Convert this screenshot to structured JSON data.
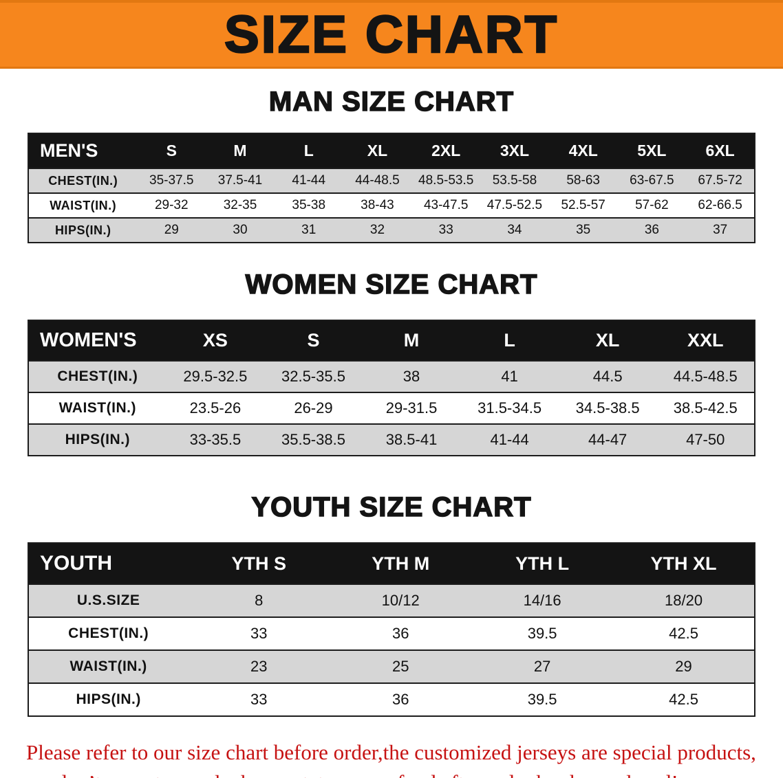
{
  "banner": {
    "title": "SIZE CHART"
  },
  "colors": {
    "banner_bg": "#F6861D",
    "table_header_bg": "#141414",
    "row_gray": "#D6D6D6",
    "footer_red": "#C61212"
  },
  "men": {
    "heading": "MAN SIZE CHART",
    "table": {
      "header": [
        "MEN'S",
        "S",
        "M",
        "L",
        "XL",
        "2XL",
        "3XL",
        "4XL",
        "5XL",
        "6XL"
      ],
      "rows": [
        {
          "label": "CHEST(IN.)",
          "values": [
            "35-37.5",
            "37.5-41",
            "41-44",
            "44-48.5",
            "48.5-53.5",
            "53.5-58",
            "58-63",
            "63-67.5",
            "67.5-72"
          ]
        },
        {
          "label": "WAIST(IN.)",
          "values": [
            "29-32",
            "32-35",
            "35-38",
            "38-43",
            "43-47.5",
            "47.5-52.5",
            "52.5-57",
            "57-62",
            "62-66.5"
          ]
        },
        {
          "label": "HIPS(IN.)",
          "values": [
            "29",
            "30",
            "31",
            "32",
            "33",
            "34",
            "35",
            "36",
            "37"
          ]
        }
      ]
    }
  },
  "women": {
    "heading": "WOMEN SIZE CHART",
    "table": {
      "header": [
        "WOMEN'S",
        "XS",
        "S",
        "M",
        "L",
        "XL",
        "XXL"
      ],
      "rows": [
        {
          "label": "CHEST(IN.)",
          "values": [
            "29.5-32.5",
            "32.5-35.5",
            "38",
            "41",
            "44.5",
            "44.5-48.5"
          ]
        },
        {
          "label": "WAIST(IN.)",
          "values": [
            "23.5-26",
            "26-29",
            "29-31.5",
            "31.5-34.5",
            "34.5-38.5",
            "38.5-42.5"
          ]
        },
        {
          "label": "HIPS(IN.)",
          "values": [
            "33-35.5",
            "35.5-38.5",
            "38.5-41",
            "41-44",
            "44-47",
            "47-50"
          ]
        }
      ]
    }
  },
  "youth": {
    "heading": "YOUTH SIZE CHART",
    "table": {
      "header": [
        "YOUTH",
        "YTH S",
        "YTH M",
        "YTH L",
        "YTH XL"
      ],
      "rows": [
        {
          "label": "U.S.SIZE",
          "values": [
            "8",
            "10/12",
            "14/16",
            "18/20"
          ]
        },
        {
          "label": "CHEST(IN.)",
          "values": [
            "33",
            "36",
            "39.5",
            "42.5"
          ]
        },
        {
          "label": "WAIST(IN.)",
          "values": [
            "23",
            "25",
            "27",
            "29"
          ]
        },
        {
          "label": "HIPS(IN.)",
          "values": [
            "33",
            "36",
            "39.5",
            "42.5"
          ]
        }
      ]
    }
  },
  "footer": {
    "line1": "Please refer to our size chart before order,the customized jerseys are special products,",
    "line2": "we don’t accept cancel, change, teturn or refund after order has been placed!"
  }
}
